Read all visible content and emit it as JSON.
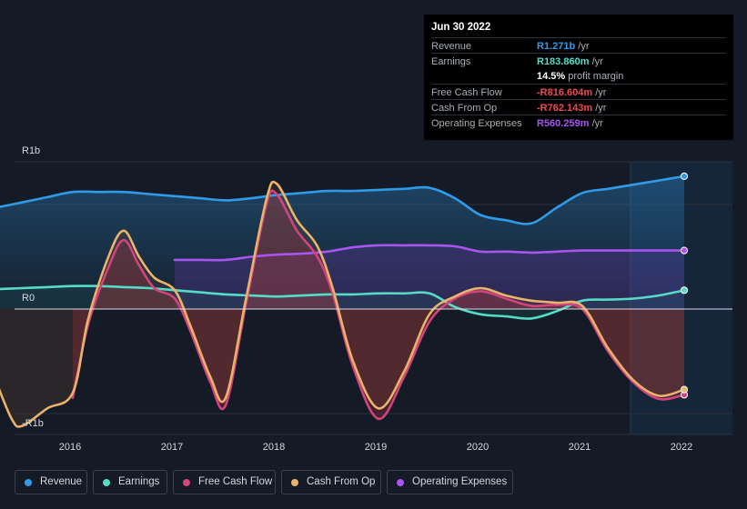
{
  "tooltip": {
    "date": "Jun 30 2022",
    "rows": [
      {
        "label": "Revenue",
        "value": "R1.271b",
        "unit": "/yr",
        "color": "#2f9be8"
      },
      {
        "label": "Earnings",
        "value": "R183.860m",
        "unit": "/yr",
        "color": "#55dcc6"
      },
      {
        "label": "",
        "value": "14.5%",
        "unit": "profit margin",
        "color": "#ffffff"
      },
      {
        "label": "Free Cash Flow",
        "value": "-R816.604m",
        "unit": "/yr",
        "color": "#ef4a53"
      },
      {
        "label": "Cash From Op",
        "value": "-R762.143m",
        "unit": "/yr",
        "color": "#ef4a53"
      },
      {
        "label": "Operating Expenses",
        "value": "R560.259m",
        "unit": "/yr",
        "color": "#a855f0"
      }
    ]
  },
  "legend": [
    {
      "label": "Revenue",
      "color": "#2f9be8"
    },
    {
      "label": "Earnings",
      "color": "#55dcc6"
    },
    {
      "label": "Free Cash Flow",
      "color": "#d2447b"
    },
    {
      "label": "Cash From Op",
      "color": "#e9b36a"
    },
    {
      "label": "Operating Expenses",
      "color": "#a855f0"
    }
  ],
  "chart_data": {
    "type": "area",
    "y_tick_labels": [
      "R1b",
      "R0",
      "-R1b"
    ],
    "x_tick_labels": [
      "2016",
      "2017",
      "2018",
      "2019",
      "2020",
      "2021",
      "2022"
    ],
    "y_unit": "R billions",
    "ylim": [
      -1.2,
      1.4
    ],
    "xlim": [
      2015.55,
      2022.5
    ],
    "highlight_from": 2021.5,
    "grid": "horizontal",
    "legend_position": "bottom",
    "series": [
      {
        "name": "Revenue",
        "color": "#2f9be8",
        "x": [
          2015.75,
          2016.0,
          2016.25,
          2016.5,
          2016.75,
          2017.0,
          2017.25,
          2017.5,
          2017.75,
          2018.0,
          2018.25,
          2018.5,
          2018.75,
          2019.0,
          2019.25,
          2019.5,
          2019.75,
          2020.0,
          2020.25,
          2020.5,
          2020.75,
          2021.0,
          2021.25,
          2021.5,
          2021.75,
          2022.0,
          2022.25,
          2022.5
        ],
        "values": [
          0.97,
          1.02,
          1.07,
          1.12,
          1.12,
          1.12,
          1.1,
          1.08,
          1.06,
          1.04,
          1.06,
          1.09,
          1.11,
          1.13,
          1.13,
          1.14,
          1.15,
          1.16,
          1.06,
          0.9,
          0.85,
          0.82,
          0.97,
          1.11,
          1.15,
          1.19,
          1.23,
          1.27
        ]
      },
      {
        "name": "Earnings",
        "color": "#55dcc6",
        "x": [
          2015.75,
          2016.0,
          2016.25,
          2016.5,
          2016.75,
          2017.0,
          2017.25,
          2017.5,
          2017.75,
          2018.0,
          2018.25,
          2018.5,
          2018.75,
          2019.0,
          2019.25,
          2019.5,
          2019.75,
          2020.0,
          2020.25,
          2020.5,
          2020.75,
          2021.0,
          2021.25,
          2021.5,
          2021.75,
          2022.0,
          2022.25,
          2022.5
        ],
        "values": [
          0.19,
          0.2,
          0.21,
          0.22,
          0.22,
          0.21,
          0.2,
          0.18,
          0.16,
          0.14,
          0.13,
          0.12,
          0.13,
          0.14,
          0.14,
          0.15,
          0.15,
          0.15,
          0.02,
          -0.05,
          -0.07,
          -0.09,
          -0.02,
          0.08,
          0.09,
          0.1,
          0.13,
          0.18
        ]
      },
      {
        "name": "Free Cash Flow",
        "color": "#d2447b",
        "x": [
          2016.5,
          2016.65,
          2016.85,
          2017.0,
          2017.15,
          2017.3,
          2017.5,
          2017.65,
          2017.85,
          2018.0,
          2018.2,
          2018.4,
          2018.5,
          2018.7,
          2018.9,
          2019.05,
          2019.25,
          2019.5,
          2019.75,
          2020.0,
          2020.25,
          2020.5,
          2020.75,
          2021.0,
          2021.25,
          2021.5,
          2021.75,
          2022.0,
          2022.25,
          2022.5
        ],
        "values": [
          -0.85,
          -0.15,
          0.4,
          0.66,
          0.42,
          0.2,
          0.1,
          -0.2,
          -0.7,
          -0.92,
          0.05,
          1.0,
          1.1,
          0.75,
          0.5,
          0.15,
          -0.55,
          -1.05,
          -0.65,
          -0.12,
          0.1,
          0.17,
          0.1,
          0.03,
          0.04,
          0.0,
          -0.4,
          -0.7,
          -0.86,
          -0.82
        ]
      },
      {
        "name": "Cash From Op",
        "color": "#e9b36a",
        "x": [
          2015.75,
          2015.9,
          2016.0,
          2016.25,
          2016.5,
          2016.65,
          2016.85,
          2017.0,
          2017.15,
          2017.3,
          2017.5,
          2017.65,
          2017.85,
          2018.0,
          2018.2,
          2018.4,
          2018.5,
          2018.7,
          2018.9,
          2019.05,
          2019.25,
          2019.5,
          2019.75,
          2020.0,
          2020.25,
          2020.5,
          2020.75,
          2021.0,
          2021.25,
          2021.5,
          2021.75,
          2022.0,
          2022.25,
          2022.5
        ],
        "values": [
          -0.7,
          -1.05,
          -1.12,
          -0.95,
          -0.8,
          -0.1,
          0.5,
          0.75,
          0.5,
          0.3,
          0.18,
          -0.15,
          -0.65,
          -0.85,
          0.1,
          1.05,
          1.2,
          0.85,
          0.6,
          0.2,
          -0.5,
          -0.95,
          -0.6,
          -0.05,
          0.12,
          0.2,
          0.13,
          0.08,
          0.06,
          0.03,
          -0.37,
          -0.68,
          -0.83,
          -0.77
        ]
      },
      {
        "name": "Operating Expenses",
        "color": "#a855f0",
        "x": [
          2017.5,
          2017.75,
          2018.0,
          2018.25,
          2018.5,
          2018.75,
          2019.0,
          2019.25,
          2019.5,
          2019.75,
          2020.0,
          2020.25,
          2020.5,
          2020.75,
          2021.0,
          2021.25,
          2021.5,
          2021.75,
          2022.0,
          2022.25,
          2022.5
        ],
        "values": [
          0.47,
          0.47,
          0.47,
          0.5,
          0.52,
          0.53,
          0.55,
          0.59,
          0.61,
          0.61,
          0.61,
          0.6,
          0.55,
          0.55,
          0.54,
          0.55,
          0.56,
          0.56,
          0.56,
          0.56,
          0.56
        ]
      }
    ]
  }
}
